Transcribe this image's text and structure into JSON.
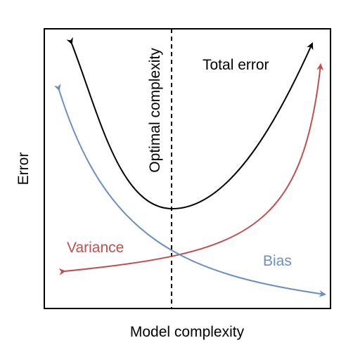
{
  "diagram": {
    "x_axis_label": "Model complexity",
    "y_axis_label": "Error",
    "optimal_label": "Optimal complexity",
    "curves": {
      "total_error": {
        "label": "Total error",
        "color": "#000000"
      },
      "variance": {
        "label": "Variance",
        "color": "#c0504d"
      },
      "bias": {
        "label": "Bias",
        "color": "#6a8fc4"
      }
    }
  }
}
